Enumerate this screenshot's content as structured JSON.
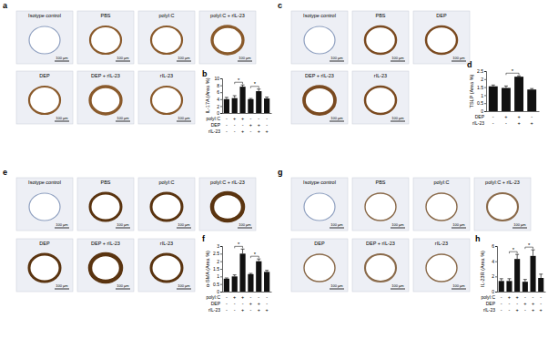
{
  "panels": [
    {
      "letter": "a",
      "images": [
        "Isotype control",
        "PBS",
        "polyI:C",
        "polyI:C + rIL-23",
        "DEP",
        "DEP + rIL-23",
        "rIL-23"
      ]
    },
    {
      "letter": "c",
      "images": [
        "Isotype control",
        "PBS",
        "DEP",
        "DEP + rIL-23",
        "rIL-23"
      ]
    },
    {
      "letter": "e",
      "images": [
        "Isotype control",
        "PBS",
        "polyI:C",
        "polyI:C + rIL-23",
        "DEP",
        "DEP + rIL-23",
        "rIL-23"
      ]
    },
    {
      "letter": "g",
      "images": [
        "Isotype control",
        "PBS",
        "polyI:C",
        "polyI:C + rIL-23",
        "DEP",
        "DEP + rIL-23",
        "rIL-23"
      ]
    }
  ],
  "scale_bar": "100 μm",
  "chart_data": [
    {
      "type": "bar",
      "letter": "b",
      "y_label": "IL-17A (Area %)",
      "color": "#111111",
      "categories": [
        null,
        null,
        null,
        null,
        null,
        null
      ],
      "values": [
        4.0,
        4.3,
        7.6,
        4.0,
        6.3,
        4.2
      ],
      "errors": [
        0.5,
        0.7,
        0.5,
        0.2,
        0.6,
        0.4
      ],
      "ylim": [
        0,
        10
      ],
      "yticks": [
        0,
        2,
        4,
        6,
        8,
        10
      ],
      "conditions": [
        {
          "label": "polyI:C",
          "signs": [
            "-",
            "+",
            "+",
            "-",
            "-",
            "-"
          ]
        },
        {
          "label": "DEP",
          "signs": [
            "-",
            "-",
            "-",
            "+",
            "+",
            "-"
          ]
        },
        {
          "label": "rIL-23",
          "signs": [
            "-",
            "-",
            "+",
            "-",
            "+",
            "+"
          ]
        }
      ],
      "annotations": [
        {
          "pair": [
            1,
            2
          ],
          "label": "*"
        },
        {
          "pair": [
            3,
            4
          ],
          "label": "*"
        }
      ]
    },
    {
      "type": "bar",
      "letter": "d",
      "y_label": "TSLP (Area %)",
      "color": "#111111",
      "categories": [
        null,
        null,
        null,
        null
      ],
      "values": [
        1.55,
        1.45,
        2.15,
        1.35
      ],
      "errors": [
        0.08,
        0.12,
        0.05,
        0.06
      ],
      "ylim": [
        0,
        2.5
      ],
      "yticks": [
        0,
        0.5,
        1,
        1.5,
        2,
        2.5
      ],
      "conditions": [
        {
          "label": "DEP",
          "signs": [
            "-",
            "+",
            "+",
            "-"
          ]
        },
        {
          "label": "rIL-23",
          "signs": [
            "-",
            "-",
            "+",
            "+"
          ]
        }
      ],
      "annotations": [
        {
          "pair": [
            1,
            2
          ],
          "label": "*"
        }
      ]
    },
    {
      "type": "bar",
      "letter": "f",
      "y_label": "α-SMA (Area %)",
      "color": "#111111",
      "categories": [
        null,
        null,
        null,
        null,
        null,
        null
      ],
      "values": [
        0.85,
        1.0,
        2.5,
        1.15,
        2.0,
        1.3
      ],
      "errors": [
        0.05,
        0.1,
        0.3,
        0.05,
        0.15,
        0.1
      ],
      "ylim": [
        0,
        3
      ],
      "yticks": [
        0,
        0.5,
        1,
        1.5,
        2,
        2.5,
        3
      ],
      "conditions": [
        {
          "label": "polyI:C",
          "signs": [
            "-",
            "+",
            "+",
            "-",
            "-",
            "-"
          ]
        },
        {
          "label": "DEP",
          "signs": [
            "-",
            "-",
            "-",
            "+",
            "+",
            "-"
          ]
        },
        {
          "label": "rIL-23",
          "signs": [
            "-",
            "-",
            "+",
            "-",
            "+",
            "+"
          ]
        }
      ],
      "annotations": [
        {
          "pair": [
            1,
            2
          ],
          "label": "*"
        },
        {
          "pair": [
            3,
            4
          ],
          "label": "*"
        }
      ]
    },
    {
      "type": "bar",
      "letter": "h",
      "y_label": "IL-23R (Area %)",
      "color": "#111111",
      "categories": [
        null,
        null,
        null,
        null,
        null,
        null
      ],
      "values": [
        1.4,
        1.4,
        4.3,
        1.3,
        4.7,
        1.8
      ],
      "errors": [
        0.3,
        0.3,
        0.6,
        0.3,
        0.8,
        0.5
      ],
      "ylim": [
        0,
        6
      ],
      "yticks": [
        0,
        2,
        4,
        6
      ],
      "conditions": [
        {
          "label": "polyI:C",
          "signs": [
            "-",
            "+",
            "+",
            "-",
            "-",
            "-"
          ]
        },
        {
          "label": "DEP",
          "signs": [
            "-",
            "-",
            "-",
            "+",
            "+",
            "-"
          ]
        },
        {
          "label": "rIL-23",
          "signs": [
            "-",
            "-",
            "+",
            "-",
            "+",
            "+"
          ]
        }
      ],
      "annotations": [
        {
          "pair": [
            1,
            2
          ],
          "label": "*"
        },
        {
          "pair": [
            3,
            4
          ],
          "label": "*"
        }
      ]
    }
  ]
}
